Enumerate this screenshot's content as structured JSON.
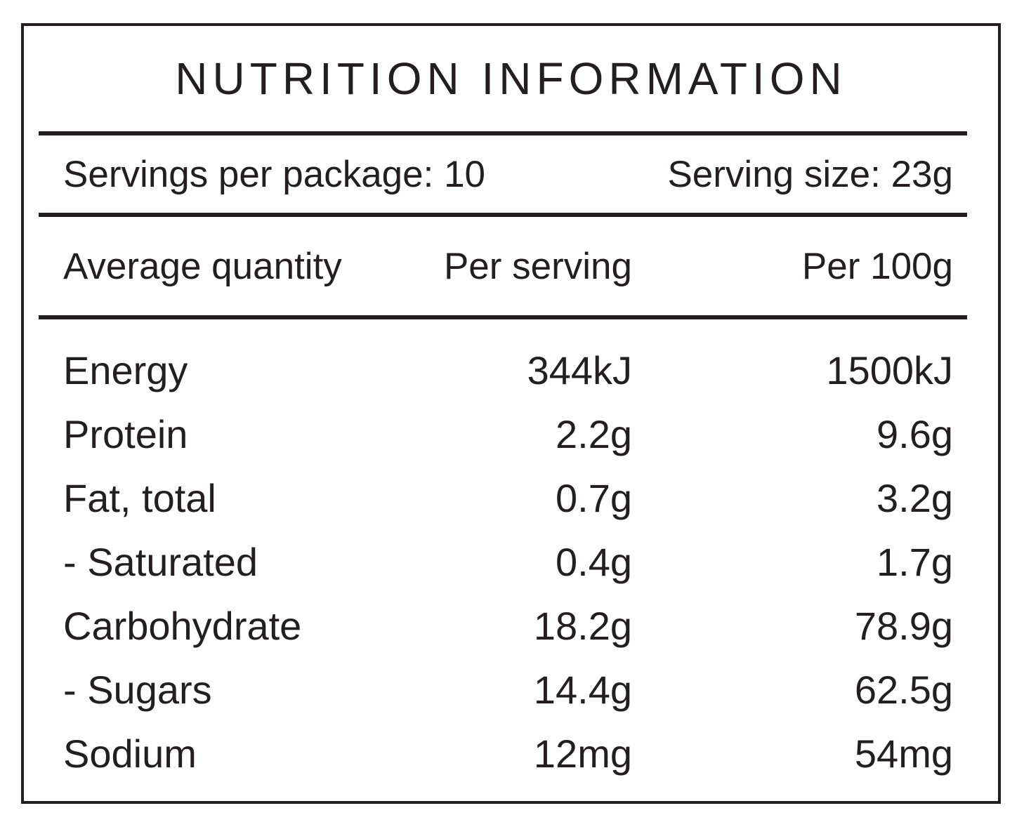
{
  "label": {
    "title": "NUTRITION INFORMATION",
    "servings_per_package": "Servings per package: 10",
    "serving_size": "Serving size: 23g"
  },
  "table": {
    "columns": [
      "Average quantity",
      "Per serving",
      "Per 100g"
    ],
    "rows": [
      {
        "label": "Energy",
        "per_serving": "344kJ",
        "per_100g": "1500kJ"
      },
      {
        "label": "Protein",
        "per_serving": "2.2g",
        "per_100g": "9.6g"
      },
      {
        "label": "Fat, total",
        "per_serving": "0.7g",
        "per_100g": "3.2g"
      },
      {
        "label": "- Saturated",
        "per_serving": "0.4g",
        "per_100g": "1.7g"
      },
      {
        "label": "Carbohydrate",
        "per_serving": "18.2g",
        "per_100g": "78.9g"
      },
      {
        "label": "- Sugars",
        "per_serving": "14.4g",
        "per_100g": "62.5g"
      },
      {
        "label": "Sodium",
        "per_serving": "12mg",
        "per_100g": "54mg"
      }
    ]
  },
  "colors": {
    "text": "#231f20",
    "line": "#231f20",
    "background": "#ffffff"
  }
}
